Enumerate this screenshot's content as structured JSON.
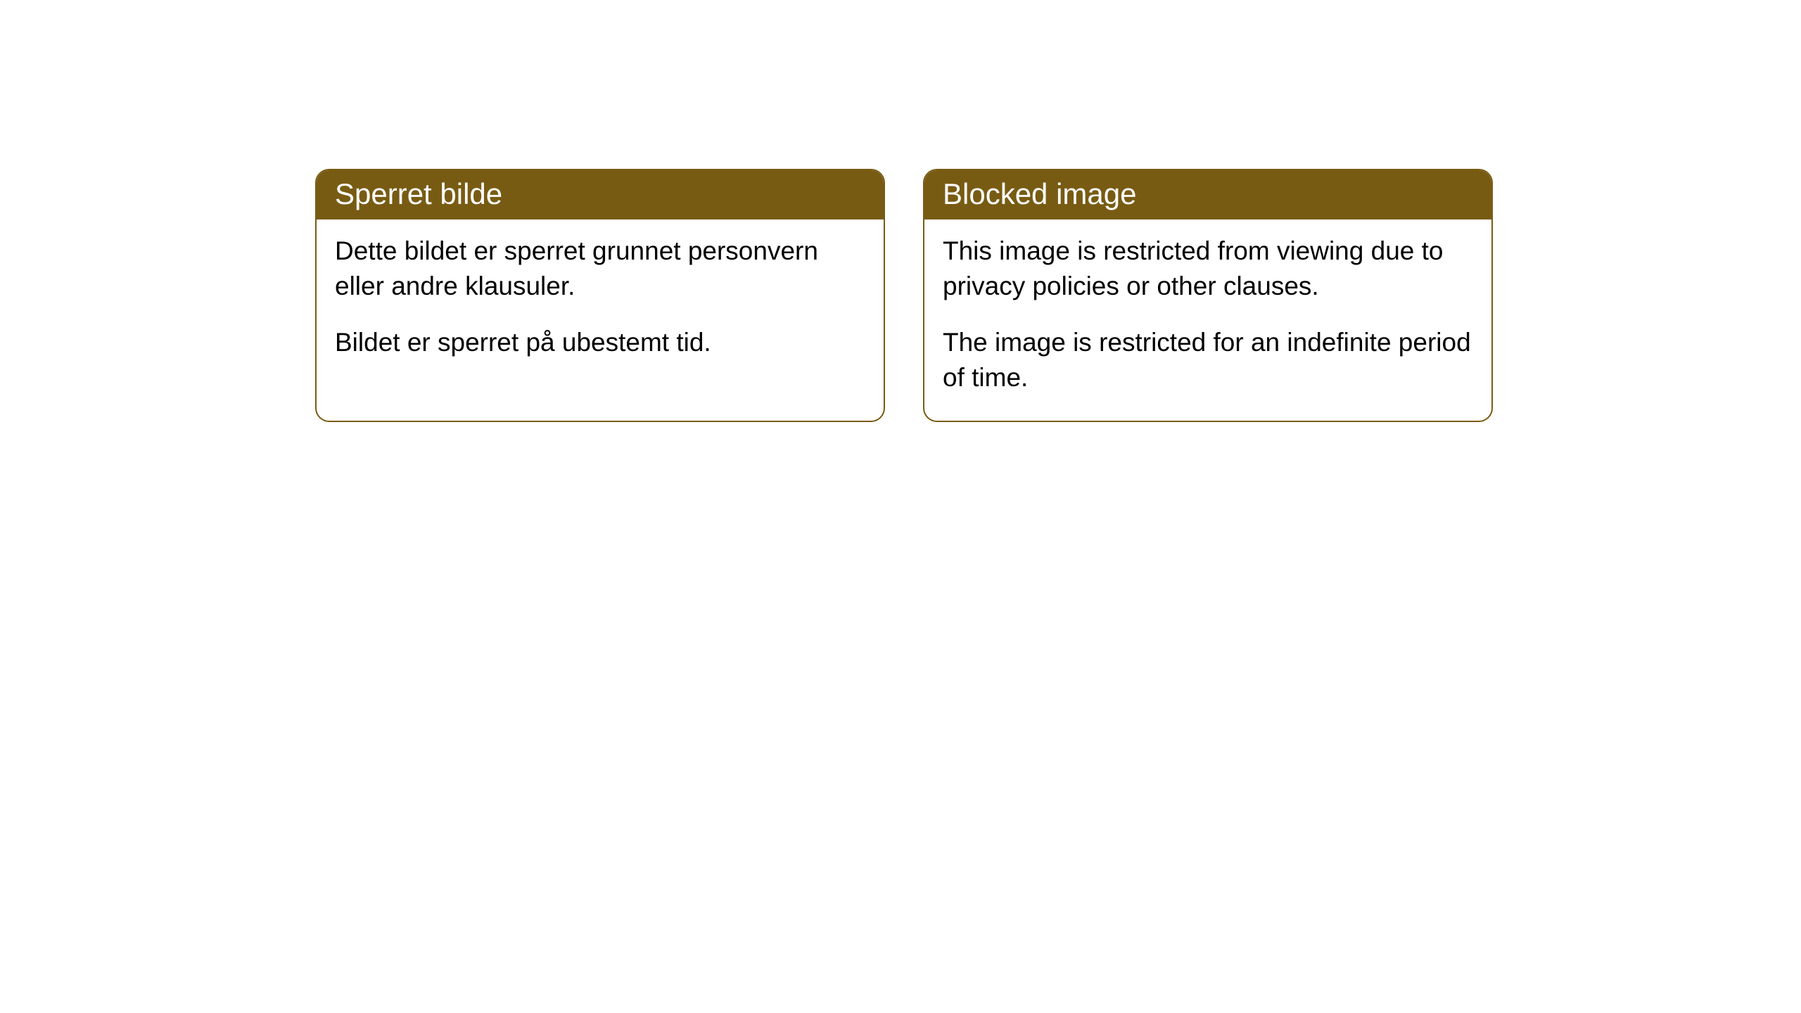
{
  "cards": [
    {
      "title": "Sperret bilde",
      "paragraph1": "Dette bildet er sperret grunnet personvern eller andre klausuler.",
      "paragraph2": "Bildet er sperret på ubestemt tid."
    },
    {
      "title": "Blocked image",
      "paragraph1": "This image is restricted from viewing due to privacy policies or other clauses.",
      "paragraph2": "The image is restricted for an indefinite period of time."
    }
  ],
  "style": {
    "header_bg_color": "#785b13",
    "header_text_color": "#ffffff",
    "border_color": "#785b13",
    "body_bg_color": "#ffffff",
    "body_text_color": "#000000",
    "border_radius": 20,
    "header_fontsize": 42,
    "body_fontsize": 37
  }
}
